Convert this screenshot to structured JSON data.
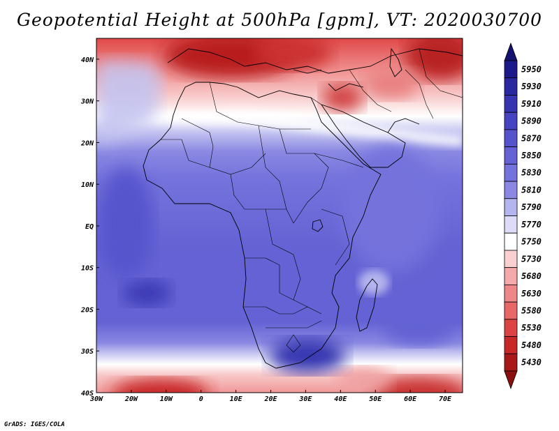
{
  "title": "Geopotential Height at 500hPa [gpm], VT: 2020030700",
  "credit": "GrADS: IGES/COLA",
  "map": {
    "lon_range": [
      -30,
      75
    ],
    "lat_range": [
      -40,
      45
    ],
    "lon_ticks": [
      {
        "value": -30,
        "label": "30W"
      },
      {
        "value": -20,
        "label": "20W"
      },
      {
        "value": -10,
        "label": "10W"
      },
      {
        "value": 0,
        "label": "0"
      },
      {
        "value": 10,
        "label": "10E"
      },
      {
        "value": 20,
        "label": "20E"
      },
      {
        "value": 30,
        "label": "30E"
      },
      {
        "value": 40,
        "label": "40E"
      },
      {
        "value": 50,
        "label": "50E"
      },
      {
        "value": 60,
        "label": "60E"
      },
      {
        "value": 70,
        "label": "70E"
      }
    ],
    "lat_ticks": [
      {
        "value": 40,
        "label": "40N"
      },
      {
        "value": 30,
        "label": "30N"
      },
      {
        "value": 20,
        "label": "20N"
      },
      {
        "value": 10,
        "label": "10N"
      },
      {
        "value": 0,
        "label": "EQ"
      },
      {
        "value": -10,
        "label": "10S"
      },
      {
        "value": -20,
        "label": "20S"
      },
      {
        "value": -30,
        "label": "30S"
      },
      {
        "value": -40,
        "label": "40S"
      }
    ]
  },
  "colorbar": {
    "levels": [
      {
        "label": "5950",
        "color": "#1c1a8a"
      },
      {
        "label": "5930",
        "color": "#2a28a0"
      },
      {
        "label": "5910",
        "color": "#3634b0"
      },
      {
        "label": "5890",
        "color": "#4644c0"
      },
      {
        "label": "5870",
        "color": "#5654cc"
      },
      {
        "label": "5850",
        "color": "#6462d4"
      },
      {
        "label": "5830",
        "color": "#7472dc"
      },
      {
        "label": "5810",
        "color": "#8a88e2"
      },
      {
        "label": "5790",
        "color": "#b4b4ee"
      },
      {
        "label": "5770",
        "color": "#dcdcf8"
      },
      {
        "label": "5750",
        "color": "#ffffff"
      },
      {
        "label": "5730",
        "color": "#f8d0d0"
      },
      {
        "label": "5680",
        "color": "#f4aaaa"
      },
      {
        "label": "5630",
        "color": "#ee8888"
      },
      {
        "label": "5580",
        "color": "#e86868"
      },
      {
        "label": "5530",
        "color": "#dc4444"
      },
      {
        "label": "5480",
        "color": "#c82828"
      },
      {
        "label": "5430",
        "color": "#a81818"
      }
    ],
    "top_color": "#141270",
    "bottom_color": "#8a1010"
  }
}
